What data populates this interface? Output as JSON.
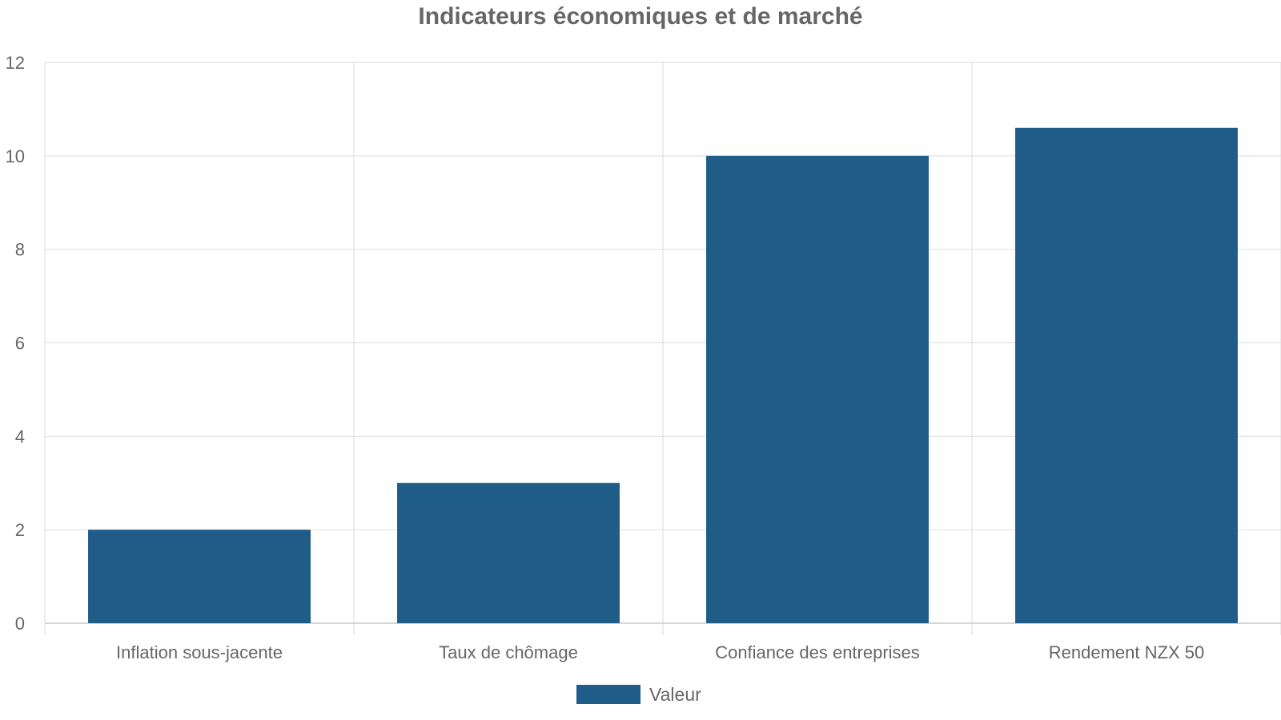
{
  "chart_data": {
    "type": "bar",
    "title": "Indicateurs économiques et de marché",
    "xlabel": "",
    "ylabel": "",
    "categories": [
      "Inflation sous-jacente",
      "Taux de chômage",
      "Confiance des entreprises",
      "Rendement NZX 50"
    ],
    "series": [
      {
        "name": "Valeur",
        "values": [
          2,
          3,
          10,
          10.6
        ],
        "color": "#1f5c87"
      }
    ],
    "ylim": [
      0,
      12
    ],
    "yticks": [
      "0",
      "2",
      "4",
      "6",
      "8",
      "10",
      "12"
    ],
    "grid": true,
    "legend_position": "bottom"
  }
}
